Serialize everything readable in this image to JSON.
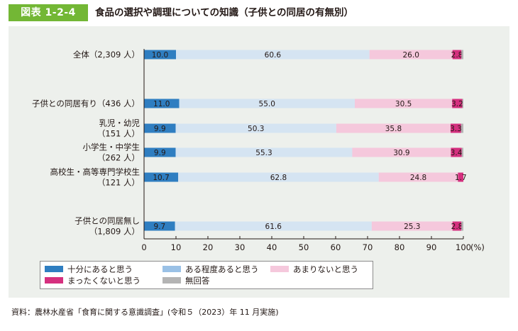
{
  "header": {
    "figure_label": "図表 1-2-4",
    "title": "食品の選択や調理についての知識（子供との同居の有無別）"
  },
  "chart_data": {
    "type": "bar",
    "orientation": "horizontal",
    "stacked": true,
    "x_unit": "(%)",
    "xlim": [
      0,
      100
    ],
    "x_ticks": [
      "0",
      "10",
      "20",
      "30",
      "40",
      "50",
      "60",
      "70",
      "80",
      "90",
      "100"
    ],
    "categories": [
      {
        "lines": [
          "全体（2,309 人）"
        ]
      },
      {
        "lines": [
          "子供との同居有り（436 人）"
        ]
      },
      {
        "lines": [
          "乳児・幼児",
          "（151 人）"
        ]
      },
      {
        "lines": [
          "小学生・中学生",
          "（262 人）"
        ]
      },
      {
        "lines": [
          "高校生・高等専門学校生",
          "（121 人）"
        ]
      },
      {
        "lines": [
          "子供との同居無し",
          "（1,809 人）"
        ]
      }
    ],
    "series": [
      {
        "name": "十分にあると思う",
        "color": "#2f7ec1",
        "values": [
          10.0,
          11.0,
          9.9,
          9.9,
          10.7,
          9.7
        ],
        "labels": [
          "10.0",
          "11.0",
          "9.9",
          "9.9",
          "10.7",
          "9.7"
        ]
      },
      {
        "name": "ある程度あると思う",
        "color": "#d5e4f2",
        "values": [
          60.6,
          55.0,
          50.3,
          55.3,
          62.8,
          61.6
        ],
        "labels": [
          "60.6",
          "55.0",
          "50.3",
          "55.3",
          "62.8",
          "61.6"
        ]
      },
      {
        "name": "あまりないと思う",
        "color": "#f5c8dc",
        "values": [
          26.0,
          30.5,
          35.8,
          30.9,
          24.8,
          25.3
        ],
        "labels": [
          "26.0",
          "30.5",
          "35.8",
          "30.9",
          "24.8",
          "25.3"
        ]
      },
      {
        "name": "まったくないと思う",
        "color": "#d5307f",
        "values": [
          2.8,
          3.2,
          3.3,
          3.4,
          1.7,
          2.8
        ],
        "labels": [
          "2.8",
          "3.2",
          "3.3",
          "3.4",
          "1.7",
          "2.8"
        ]
      },
      {
        "name": "無回答",
        "color": "#b4b4b4",
        "values": [
          0.6,
          0.3,
          0.7,
          0.5,
          0.0,
          0.6
        ],
        "labels": null
      }
    ],
    "legend": {
      "position": "bottom-left",
      "items": [
        {
          "label": "十分にあると思う",
          "color": "#2f7ec1"
        },
        {
          "label": "ある程度あると思う",
          "color": "#9ac1e6"
        },
        {
          "label": "あまりないと思う",
          "color": "#f5c8dc"
        },
        {
          "label": "まったくないと思う",
          "color": "#d5307f"
        },
        {
          "label": "無回答",
          "color": "#b4b4b4"
        }
      ]
    }
  },
  "source": "資料：農林水産省「食育に関する意識調査」(令和５（2023）年 11 月実施)"
}
